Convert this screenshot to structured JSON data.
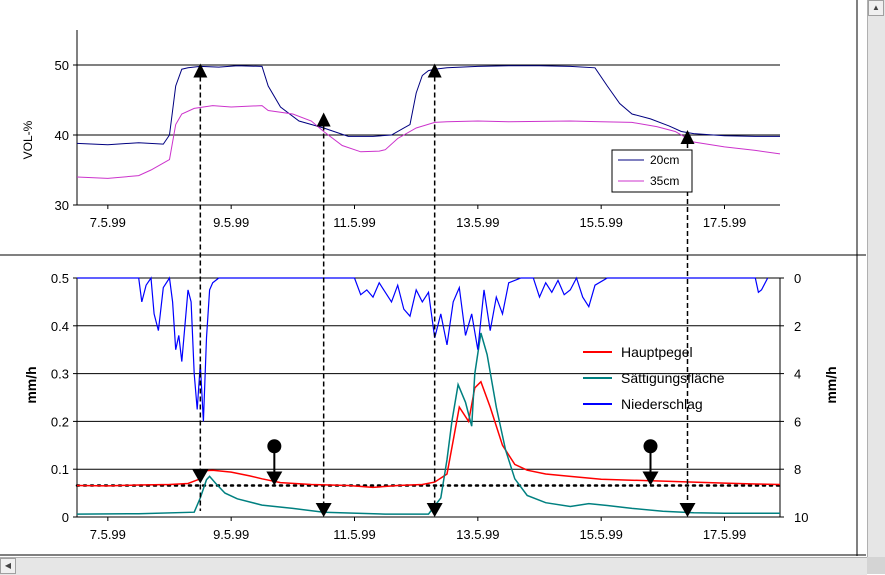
{
  "chart_data": [
    {
      "type": "line",
      "ylabel": "VOL-%",
      "ylim": [
        30,
        55
      ],
      "yticks": [
        30,
        40,
        50
      ],
      "xlim": [
        7.0,
        18.4
      ],
      "xtick_labels": [
        "7.5.99",
        "9.5.99",
        "11.5.99",
        "13.5.99",
        "15.5.99",
        "17.5.99"
      ],
      "xtick_values": [
        7.5,
        9.5,
        11.5,
        13.5,
        15.5,
        17.5
      ],
      "grid": "horizontal",
      "legend_position": "right",
      "series": [
        {
          "name": "20cm",
          "color": "#000080",
          "x": [
            7.0,
            7.5,
            8.0,
            8.4,
            8.5,
            8.6,
            8.7,
            8.8,
            9.0,
            9.3,
            9.6,
            10.0,
            10.1,
            10.3,
            10.6,
            11.0,
            11.4,
            11.8,
            12.1,
            12.4,
            12.5,
            12.6,
            12.7,
            12.8,
            13.0,
            13.5,
            14.0,
            14.5,
            15.0,
            15.4,
            15.6,
            15.8,
            16.0,
            16.3,
            16.6,
            16.8,
            17.0,
            17.5,
            18.0,
            18.4
          ],
          "y": [
            38.8,
            38.6,
            38.9,
            38.7,
            40.0,
            47.0,
            49.4,
            49.6,
            49.8,
            49.7,
            49.9,
            49.8,
            47.0,
            44.0,
            42.0,
            41.0,
            39.8,
            39.8,
            40.0,
            41.5,
            46.0,
            48.5,
            49.2,
            49.4,
            49.6,
            49.8,
            49.9,
            49.9,
            49.8,
            49.6,
            47.0,
            44.5,
            43.0,
            42.3,
            41.3,
            40.5,
            40.2,
            39.9,
            39.8,
            39.8
          ]
        },
        {
          "name": "35cm",
          "color": "#cc33cc",
          "x": [
            7.0,
            7.5,
            8.0,
            8.2,
            8.5,
            8.6,
            8.7,
            8.9,
            9.2,
            9.5,
            10.0,
            10.1,
            10.5,
            10.8,
            11.0,
            11.3,
            11.6,
            11.9,
            12.0,
            12.2,
            12.5,
            12.8,
            13.0,
            13.5,
            14.0,
            15.0,
            15.5,
            16.0,
            16.4,
            16.7,
            17.0,
            17.5,
            18.0,
            18.4
          ],
          "y": [
            34.0,
            33.8,
            34.2,
            35.0,
            36.5,
            41.5,
            43.0,
            43.8,
            44.2,
            44.0,
            44.2,
            43.5,
            43.0,
            42.0,
            40.5,
            38.5,
            37.6,
            37.7,
            37.9,
            39.5,
            41.0,
            41.8,
            41.9,
            42.0,
            41.9,
            42.0,
            41.9,
            41.8,
            41.2,
            40.5,
            39.0,
            38.3,
            37.8,
            37.3
          ]
        }
      ]
    },
    {
      "type": "line",
      "ylabel": "mm/h",
      "y2label": "mm/h",
      "ylim": [
        0,
        0.5
      ],
      "yticks": [
        0,
        0.1,
        0.2,
        0.3,
        0.4,
        0.5
      ],
      "y2lim_inverted": [
        0,
        10
      ],
      "y2ticks": [
        0,
        2,
        4,
        6,
        8,
        10
      ],
      "xlim": [
        7.0,
        18.4
      ],
      "xtick_labels": [
        "7.5.99",
        "9.5.99",
        "11.5.99",
        "13.5.99",
        "15.5.99",
        "17.5.99"
      ],
      "xtick_values": [
        7.5,
        9.5,
        11.5,
        13.5,
        15.5,
        17.5
      ],
      "grid": "horizontal",
      "legend_position": "right",
      "threshold_line": 0.066,
      "series": [
        {
          "name": "Hauptpegel",
          "color": "#ff0000",
          "axis": "left",
          "x": [
            7.0,
            7.5,
            8.0,
            8.5,
            8.8,
            9.0,
            9.1,
            9.2,
            9.5,
            9.8,
            10.0,
            10.3,
            10.8,
            11.4,
            11.8,
            12.2,
            12.6,
            12.8,
            13.0,
            13.1,
            13.2,
            13.35,
            13.45,
            13.55,
            13.7,
            13.9,
            14.1,
            14.3,
            14.6,
            15.0,
            15.5,
            16.0,
            16.5,
            17.0,
            17.5,
            18.0,
            18.4
          ],
          "y": [
            0.066,
            0.065,
            0.067,
            0.068,
            0.07,
            0.08,
            0.097,
            0.098,
            0.094,
            0.086,
            0.08,
            0.072,
            0.068,
            0.066,
            0.062,
            0.066,
            0.068,
            0.073,
            0.09,
            0.16,
            0.23,
            0.2,
            0.27,
            0.283,
            0.23,
            0.15,
            0.11,
            0.098,
            0.09,
            0.085,
            0.079,
            0.077,
            0.075,
            0.073,
            0.071,
            0.069,
            0.068
          ]
        },
        {
          "name": "Sättigungsfläche",
          "color": "#008080",
          "axis": "left",
          "x": [
            7.0,
            8.0,
            8.9,
            9.0,
            9.1,
            9.15,
            9.25,
            9.4,
            9.6,
            10.0,
            10.5,
            11.0,
            12.0,
            12.7,
            12.9,
            13.0,
            13.08,
            13.18,
            13.3,
            13.4,
            13.45,
            13.55,
            13.65,
            13.8,
            13.95,
            14.1,
            14.3,
            14.6,
            15.0,
            15.3,
            15.6,
            16.0,
            16.5,
            17.0,
            17.5,
            18.0,
            18.4
          ],
          "y": [
            0.006,
            0.007,
            0.01,
            0.04,
            0.078,
            0.085,
            0.07,
            0.05,
            0.038,
            0.025,
            0.018,
            0.01,
            0.006,
            0.006,
            0.04,
            0.12,
            0.2,
            0.277,
            0.24,
            0.19,
            0.3,
            0.385,
            0.34,
            0.23,
            0.14,
            0.08,
            0.045,
            0.03,
            0.022,
            0.028,
            0.024,
            0.018,
            0.012,
            0.009,
            0.008,
            0.008,
            0.008
          ]
        },
        {
          "name": "Niederschlag",
          "color": "#0000ff",
          "axis": "right",
          "x": [
            7.0,
            8.0,
            8.05,
            8.12,
            8.2,
            8.25,
            8.32,
            8.4,
            8.5,
            8.55,
            8.6,
            8.65,
            8.7,
            8.75,
            8.8,
            8.85,
            8.9,
            8.95,
            9.0,
            9.05,
            9.1,
            9.15,
            9.2,
            9.3,
            9.5,
            11.5,
            11.6,
            11.7,
            11.8,
            11.9,
            12.0,
            12.1,
            12.2,
            12.3,
            12.4,
            12.5,
            12.6,
            12.7,
            12.8,
            12.9,
            13.0,
            13.1,
            13.2,
            13.3,
            13.4,
            13.5,
            13.6,
            13.7,
            13.8,
            13.9,
            14.0,
            14.2,
            14.4,
            14.5,
            14.6,
            14.7,
            14.8,
            14.9,
            15.0,
            15.1,
            15.2,
            15.3,
            15.4,
            15.6,
            18.0,
            18.05,
            18.1,
            18.2
          ],
          "y": [
            0,
            0,
            1.0,
            0.3,
            0,
            1.5,
            2.2,
            0.4,
            0,
            1.0,
            3.0,
            2.4,
            3.5,
            2.0,
            0.5,
            1.0,
            4.0,
            5.5,
            3.6,
            6.0,
            2.5,
            0.5,
            0.2,
            0,
            0,
            0,
            0.7,
            0.5,
            0.8,
            0.2,
            0.6,
            1.0,
            0.3,
            1.3,
            1.6,
            0.5,
            1.0,
            0.6,
            2.5,
            1.5,
            2.8,
            1.0,
            0.4,
            2.4,
            1.5,
            3.0,
            0.5,
            2.2,
            0.8,
            1.5,
            0.2,
            0,
            0,
            0.8,
            0.2,
            0.6,
            0.1,
            0.7,
            0.5,
            0,
            0.8,
            1.2,
            0.3,
            0,
            0,
            0.6,
            0.5,
            0
          ]
        }
      ],
      "arrows_up_top_chart": [
        9.0,
        11.0,
        12.8,
        16.9
      ],
      "arrows_down_bottom_chart": [
        9.0,
        10.2,
        11.0,
        12.8,
        16.3,
        16.9
      ]
    }
  ]
}
